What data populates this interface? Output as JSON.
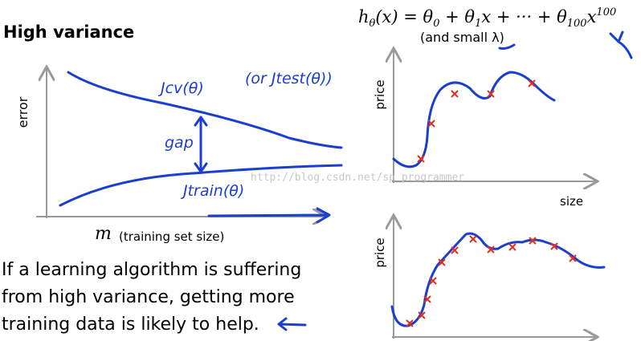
{
  "header": {
    "title": "High variance"
  },
  "formula": {
    "parts": [
      "h",
      "θ",
      "(x) = θ",
      "0",
      " + θ",
      "1",
      "x + ··· + θ",
      "100",
      "x",
      "100"
    ],
    "note": "(and small λ)"
  },
  "learning_curve": {
    "y_label": "error",
    "x_label_symbol": "m",
    "x_label": "(training set size)",
    "cv_label": "Jcv(θ)",
    "test_label": "(or Jtest(θ))",
    "gap_label": "gap",
    "train_label": "Jtrain(θ)"
  },
  "fit_top": {
    "y_label": "price",
    "x_label": "size"
  },
  "fit_bottom": {
    "y_label": "price"
  },
  "body": {
    "lines": [
      "If a learning algorithm is suffering",
      "from high variance, getting more",
      "training data is likely to help."
    ]
  },
  "watermark": "http://blog.csdn.net/sp_programmer"
}
